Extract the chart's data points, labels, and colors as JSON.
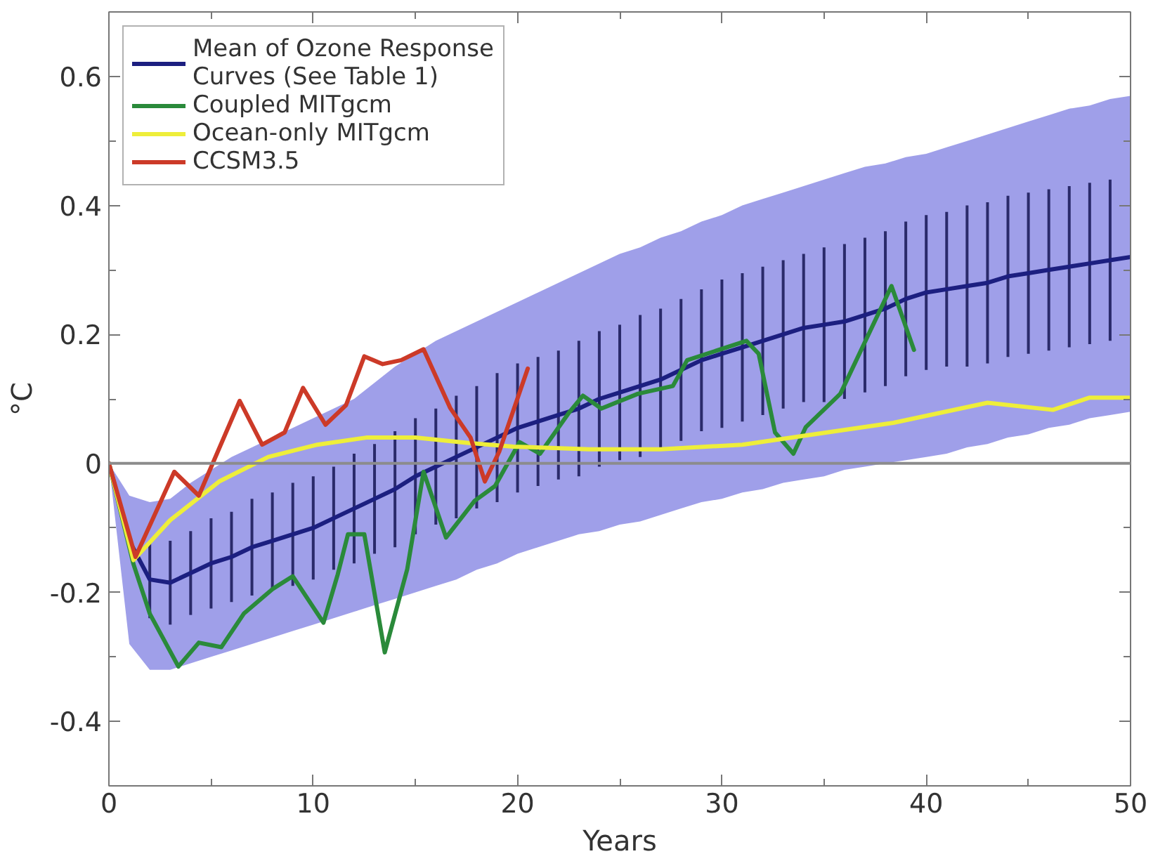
{
  "chart_data": {
    "type": "line",
    "xlabel": "Years",
    "ylabel": "°C",
    "xlim": [
      0,
      50
    ],
    "ylim": [
      -0.5,
      0.7
    ],
    "xticks": [
      0,
      10,
      20,
      30,
      40,
      50
    ],
    "yticks": [
      -0.4,
      -0.2,
      0,
      0.2,
      0.4,
      0.6
    ],
    "grid": false,
    "legend": "top left",
    "marker": "none",
    "line_style": "solid",
    "ref_lines": [
      {
        "axis": "y",
        "value": 0,
        "color": "#8c8c8c"
      }
    ],
    "series": [
      {
        "name": "Mean of Ozone Response Curves (See Table 1)",
        "color": "#1c1f80",
        "x": [
          0,
          1,
          2,
          3,
          4,
          5,
          6,
          7,
          8,
          9,
          10,
          11,
          12,
          13,
          14,
          15,
          16,
          17,
          18,
          19,
          20,
          21,
          22,
          23,
          24,
          25,
          26,
          27,
          28,
          29,
          30,
          31,
          32,
          33,
          34,
          35,
          36,
          37,
          38,
          39,
          40,
          41,
          42,
          43,
          44,
          45,
          46,
          47,
          48,
          49,
          50
        ],
        "values": [
          0,
          -0.12,
          -0.18,
          -0.185,
          -0.17,
          -0.155,
          -0.145,
          -0.13,
          -0.12,
          -0.11,
          -0.1,
          -0.085,
          -0.07,
          -0.055,
          -0.04,
          -0.02,
          -0.005,
          0.01,
          0.025,
          0.04,
          0.055,
          0.065,
          0.075,
          0.085,
          0.1,
          0.11,
          0.12,
          0.13,
          0.145,
          0.16,
          0.17,
          0.18,
          0.19,
          0.2,
          0.21,
          0.215,
          0.22,
          0.23,
          0.24,
          0.255,
          0.265,
          0.27,
          0.275,
          0.28,
          0.29,
          0.295,
          0.3,
          0.305,
          0.31,
          0.315,
          0.32
        ],
        "errors": [
          null,
          null,
          0.06,
          0.065,
          0.065,
          0.07,
          0.07,
          0.075,
          0.075,
          0.08,
          0.08,
          0.08,
          0.085,
          0.085,
          0.09,
          0.09,
          0.09,
          0.095,
          0.095,
          0.1,
          0.1,
          0.1,
          0.1,
          0.105,
          0.105,
          0.105,
          0.11,
          0.11,
          0.11,
          0.11,
          0.115,
          0.115,
          0.115,
          0.115,
          0.115,
          0.12,
          0.12,
          0.12,
          0.12,
          0.12,
          0.12,
          0.12,
          0.125,
          0.125,
          0.125,
          0.125,
          0.125,
          0.125,
          0.125,
          0.125,
          null
        ],
        "upper": [
          0,
          -0.05,
          -0.06,
          -0.055,
          -0.03,
          -0.01,
          0.01,
          0.025,
          0.04,
          0.055,
          0.07,
          0.085,
          0.1,
          0.125,
          0.15,
          0.17,
          0.19,
          0.205,
          0.22,
          0.235,
          0.25,
          0.265,
          0.28,
          0.295,
          0.31,
          0.325,
          0.335,
          0.35,
          0.36,
          0.375,
          0.385,
          0.4,
          0.41,
          0.42,
          0.43,
          0.44,
          0.45,
          0.46,
          0.465,
          0.475,
          0.48,
          0.49,
          0.5,
          0.51,
          0.52,
          0.53,
          0.54,
          0.55,
          0.555,
          0.565,
          0.57
        ],
        "lower": [
          0,
          -0.28,
          -0.32,
          -0.32,
          -0.31,
          -0.3,
          -0.29,
          -0.28,
          -0.27,
          -0.26,
          -0.25,
          -0.24,
          -0.23,
          -0.22,
          -0.21,
          -0.2,
          -0.19,
          -0.18,
          -0.165,
          -0.155,
          -0.14,
          -0.13,
          -0.12,
          -0.11,
          -0.105,
          -0.095,
          -0.09,
          -0.08,
          -0.07,
          -0.06,
          -0.055,
          -0.045,
          -0.04,
          -0.03,
          -0.025,
          -0.02,
          -0.01,
          -0.005,
          0,
          0.005,
          0.01,
          0.015,
          0.025,
          0.03,
          0.04,
          0.045,
          0.055,
          0.06,
          0.07,
          0.075,
          0.08
        ]
      },
      {
        "name": "Coupled MITgcm",
        "color": "#2a8a3a",
        "x": [
          0,
          1.2,
          2,
          3.4,
          4.4,
          5.5,
          6.6,
          8,
          9,
          10.5,
          11.2,
          11.7,
          12.5,
          13.5,
          14.6,
          15.4,
          16.5,
          17.9,
          18.9,
          20.1,
          21.1,
          22.5,
          23.2,
          24.1,
          25.9,
          27.6,
          28.3,
          31.2,
          31.8,
          32.6,
          33.5,
          34.1,
          35.8,
          38.3,
          39.4
        ],
        "values": [
          0,
          -0.156,
          -0.233,
          -0.315,
          -0.278,
          -0.285,
          -0.233,
          -0.195,
          -0.175,
          -0.247,
          -0.172,
          -0.11,
          -0.11,
          -0.293,
          -0.164,
          -0.013,
          -0.115,
          -0.058,
          -0.035,
          0.033,
          0.015,
          0.078,
          0.105,
          0.085,
          0.108,
          0.12,
          0.16,
          0.19,
          0.17,
          0.048,
          0.015,
          0.056,
          0.108,
          0.275,
          0.176
        ]
      },
      {
        "name": "Ocean-only MITgcm",
        "color": "#eeee3a",
        "x": [
          0,
          1.2,
          3,
          5.4,
          7.8,
          10.2,
          12.6,
          15,
          17.5,
          19.8,
          23.5,
          27,
          31,
          38.4,
          43,
          46.2,
          48,
          50
        ],
        "values": [
          0,
          -0.15,
          -0.088,
          -0.028,
          0.01,
          0.029,
          0.04,
          0.04,
          0.032,
          0.026,
          0.022,
          0.022,
          0.029,
          0.063,
          0.094,
          0.083,
          0.102,
          0.102
        ]
      },
      {
        "name": "CCSM3.5",
        "color": "#cc3a28",
        "x": [
          0,
          1.3,
          3.2,
          4.4,
          6.4,
          7.5,
          8.6,
          9.5,
          10.6,
          11.6,
          12.5,
          13.4,
          14.3,
          15.4,
          16.7,
          17.7,
          18.4,
          19.1,
          20.5
        ],
        "values": [
          0,
          -0.145,
          -0.013,
          -0.05,
          0.097,
          0.029,
          0.048,
          0.117,
          0.06,
          0.09,
          0.166,
          0.154,
          0.16,
          0.177,
          0.086,
          0.04,
          -0.028,
          0.018,
          0.147
        ]
      }
    ]
  }
}
